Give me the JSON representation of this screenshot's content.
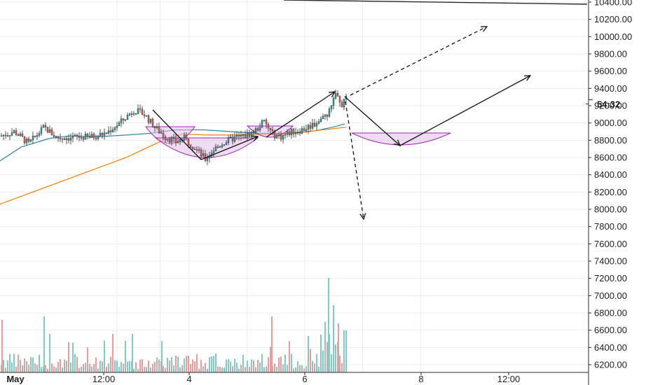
{
  "chart_data": {
    "type": "candlestick",
    "title": "",
    "price_axis": {
      "ticks": [
        "10400.00",
        "10200.00",
        "10000.00",
        "9800.00",
        "9600.00",
        "9400.00",
        "9200.00",
        "9000.00",
        "8800.00",
        "8600.00",
        "8400.00",
        "8200.00",
        "8000.00",
        "7800.00",
        "7600.00",
        "7400.00",
        "7200.00",
        "7000.00",
        "6800.00",
        "6600.00",
        "6400.00",
        "6200.00"
      ],
      "ylim": [
        6100,
        10450
      ],
      "current_price_label": "54:32"
    },
    "time_axis": {
      "ticks": [
        "May",
        "12:00",
        "4",
        "6",
        "8",
        "12:00"
      ],
      "start_label": "May",
      "xlim_hours": [
        -12,
        132
      ]
    },
    "grid": true,
    "indicators": [
      {
        "name": "",
        "color": "#2e86ab",
        "kind": "moving-average-fast"
      },
      {
        "name": "",
        "color": "#f57c00",
        "kind": "moving-average-slow"
      }
    ],
    "annotations": {
      "cup_fill_color": "#e1bee7",
      "cup_stroke_color": "#9c27b0",
      "arrow_color": "#000000"
    },
    "colors": {
      "up": "#26a69a",
      "down": "#ef5350",
      "volume_up": "#80cbc4",
      "volume_down": "#ef9a9a"
    }
  }
}
